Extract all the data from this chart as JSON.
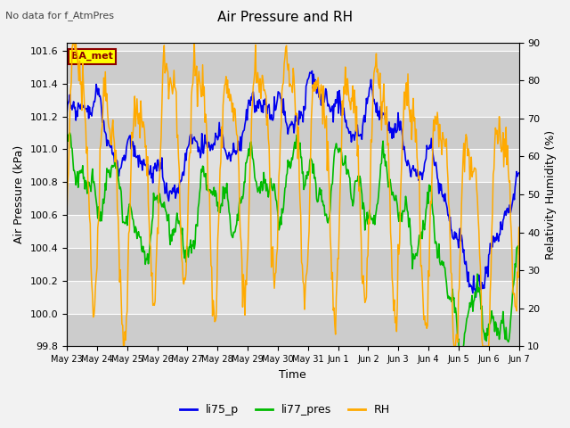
{
  "title": "Air Pressure and RH",
  "subtitle": "No data for f_AtmPres",
  "xlabel": "Time",
  "ylabel_left": "Air Pressure (kPa)",
  "ylabel_right": "Relativity Humidity (%)",
  "ylim_left": [
    99.8,
    101.65
  ],
  "ylim_right": [
    10,
    90
  ],
  "yticks_left": [
    99.8,
    100.0,
    100.2,
    100.4,
    100.6,
    100.8,
    101.0,
    101.2,
    101.4,
    101.6
  ],
  "yticks_right": [
    10,
    20,
    30,
    40,
    50,
    60,
    70,
    80,
    90
  ],
  "xtick_labels": [
    "May 23",
    "May 24",
    "May 25",
    "May 26",
    "May 27",
    "May 28",
    "May 29",
    "May 30",
    "May 31",
    "Jun 1",
    "Jun 2",
    "Jun 3",
    "Jun 4",
    "Jun 5",
    "Jun 6",
    "Jun 7"
  ],
  "color_li75": "#0000ee",
  "color_li77": "#00bb00",
  "color_rh": "#ffaa00",
  "bg_color": "#f2f2f2",
  "plot_bg": "#e0e0e0",
  "band_color": "#cccccc",
  "legend_labels": [
    "li75_p",
    "li77_pres",
    "RH"
  ],
  "station_label": "BA_met",
  "station_label_color": "#8b0000",
  "station_box_color": "#ffff00",
  "n_points": 600
}
